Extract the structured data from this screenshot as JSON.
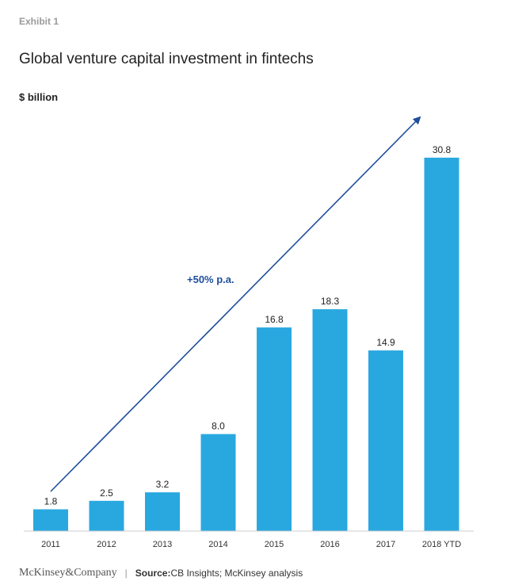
{
  "header": {
    "exhibit": "Exhibit 1",
    "title": "Global venture capital investment in fintechs",
    "unit": "$ billion"
  },
  "chart_data": {
    "type": "bar",
    "categories": [
      "2011",
      "2012",
      "2013",
      "2014",
      "2015",
      "2016",
      "2017",
      "2018 YTD"
    ],
    "values": [
      1.8,
      2.5,
      3.2,
      8.0,
      16.8,
      18.3,
      14.9,
      30.8
    ],
    "value_labels": [
      "1.8",
      "2.5",
      "3.2",
      "8.0",
      "16.8",
      "18.3",
      "14.9",
      "30.8"
    ],
    "ylabel": "$ billion",
    "ylim": [
      0,
      34
    ],
    "grid": false,
    "bar_color": "#29a8e0",
    "annotation": {
      "text": "+50% p.a.",
      "color": "#1f4e9c"
    }
  },
  "footer": {
    "brand": "McKinsey&Company",
    "separator": "|",
    "source_label": "Source:",
    "source_text": " CB Insights; McKinsey analysis"
  }
}
